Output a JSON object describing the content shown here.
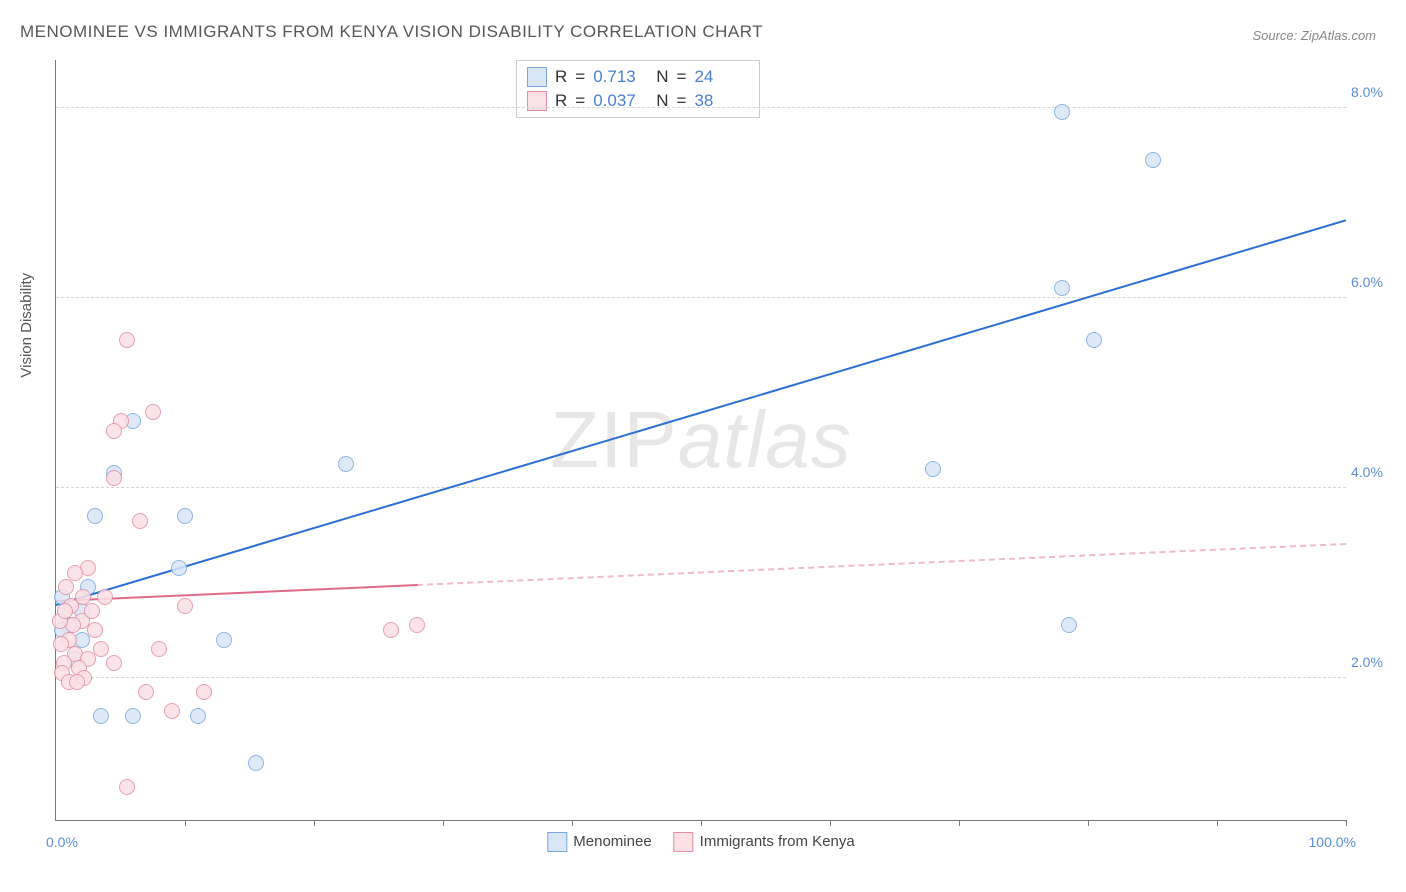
{
  "title": "MENOMINEE VS IMMIGRANTS FROM KENYA VISION DISABILITY CORRELATION CHART",
  "source": "Source: ZipAtlas.com",
  "ylabel": "Vision Disability",
  "watermark": "ZIPatlas",
  "chart": {
    "type": "scatter",
    "xlim": [
      0,
      100
    ],
    "ylim": [
      0.5,
      8.5
    ],
    "y_ticks": [
      2.0,
      4.0,
      6.0,
      8.0
    ],
    "y_tick_labels": [
      "2.0%",
      "4.0%",
      "6.0%",
      "8.0%"
    ],
    "x_ticks_minor": [
      10,
      20,
      30,
      40,
      50,
      60,
      70,
      80,
      90,
      100
    ],
    "x_tick_labels": {
      "0": "0.0%",
      "100": "100.0%"
    },
    "background_color": "#ffffff",
    "grid_color": "#d5d5d5",
    "marker_radius": 8,
    "series": [
      {
        "name": "Menominee",
        "fill": "#d9e6f7",
        "stroke": "#7aa8de",
        "R": "0.713",
        "N": "24",
        "trend": {
          "x1": 0,
          "y1": 2.75,
          "x2": 100,
          "y2": 6.8,
          "color": "#2a6fd6",
          "width": 2.5,
          "solid_until_x": 100
        },
        "points": [
          {
            "x": 78,
            "y": 7.95
          },
          {
            "x": 85,
            "y": 7.45
          },
          {
            "x": 78,
            "y": 6.1
          },
          {
            "x": 80.5,
            "y": 5.55
          },
          {
            "x": 68,
            "y": 4.2
          },
          {
            "x": 78.5,
            "y": 2.55
          },
          {
            "x": 22.5,
            "y": 4.25
          },
          {
            "x": 15.5,
            "y": 1.1
          },
          {
            "x": 13,
            "y": 2.4
          },
          {
            "x": 11,
            "y": 1.6
          },
          {
            "x": 9.5,
            "y": 3.15
          },
          {
            "x": 10,
            "y": 3.7
          },
          {
            "x": 6,
            "y": 4.7
          },
          {
            "x": 6,
            "y": 1.6
          },
          {
            "x": 4.5,
            "y": 4.15
          },
          {
            "x": 3.5,
            "y": 1.6
          },
          {
            "x": 3,
            "y": 3.7
          },
          {
            "x": 2.5,
            "y": 2.95
          },
          {
            "x": 2,
            "y": 2.4
          },
          {
            "x": 2,
            "y": 2.7
          },
          {
            "x": 1.5,
            "y": 2.2
          },
          {
            "x": 1,
            "y": 2.55
          },
          {
            "x": 0.5,
            "y": 2.85
          },
          {
            "x": 0.5,
            "y": 2.5
          }
        ]
      },
      {
        "name": "Immigrants from Kenya",
        "fill": "#fbe0e6",
        "stroke": "#e48fa4",
        "R": "0.037",
        "N": "38",
        "trend": {
          "x1": 0,
          "y1": 2.8,
          "x2": 100,
          "y2": 3.4,
          "color": "#e06a88",
          "width": 2,
          "solid_until_x": 28
        },
        "points": [
          {
            "x": 5.5,
            "y": 5.55
          },
          {
            "x": 7.5,
            "y": 4.8
          },
          {
            "x": 5,
            "y": 4.7
          },
          {
            "x": 4.5,
            "y": 4.6
          },
          {
            "x": 4.5,
            "y": 4.1
          },
          {
            "x": 6.5,
            "y": 3.65
          },
          {
            "x": 2.5,
            "y": 3.15
          },
          {
            "x": 1.5,
            "y": 3.1
          },
          {
            "x": 0.8,
            "y": 2.95
          },
          {
            "x": 1.2,
            "y": 2.75
          },
          {
            "x": 2,
            "y": 2.6
          },
          {
            "x": 3,
            "y": 2.5
          },
          {
            "x": 3.5,
            "y": 2.3
          },
          {
            "x": 1,
            "y": 2.4
          },
          {
            "x": 1.5,
            "y": 2.25
          },
          {
            "x": 2.5,
            "y": 2.2
          },
          {
            "x": 0.6,
            "y": 2.15
          },
          {
            "x": 1.8,
            "y": 2.1
          },
          {
            "x": 2.2,
            "y": 2.0
          },
          {
            "x": 0.5,
            "y": 2.05
          },
          {
            "x": 1,
            "y": 1.95
          },
          {
            "x": 4.5,
            "y": 2.15
          },
          {
            "x": 8,
            "y": 2.3
          },
          {
            "x": 10,
            "y": 2.75
          },
          {
            "x": 11.5,
            "y": 1.85
          },
          {
            "x": 9,
            "y": 1.65
          },
          {
            "x": 5.5,
            "y": 0.85
          },
          {
            "x": 7,
            "y": 1.85
          },
          {
            "x": 26,
            "y": 2.5
          },
          {
            "x": 28,
            "y": 2.55
          },
          {
            "x": 2.8,
            "y": 2.7
          },
          {
            "x": 1.3,
            "y": 2.55
          },
          {
            "x": 0.3,
            "y": 2.6
          },
          {
            "x": 0.4,
            "y": 2.35
          },
          {
            "x": 0.7,
            "y": 2.7
          },
          {
            "x": 3.8,
            "y": 2.85
          },
          {
            "x": 2.1,
            "y": 2.85
          },
          {
            "x": 1.6,
            "y": 1.95
          }
        ]
      }
    ]
  },
  "legend_top_labels": {
    "r": "R",
    "eq": "=",
    "n": "N"
  },
  "legend_bottom": [
    "Menominee",
    "Immigrants from Kenya"
  ]
}
